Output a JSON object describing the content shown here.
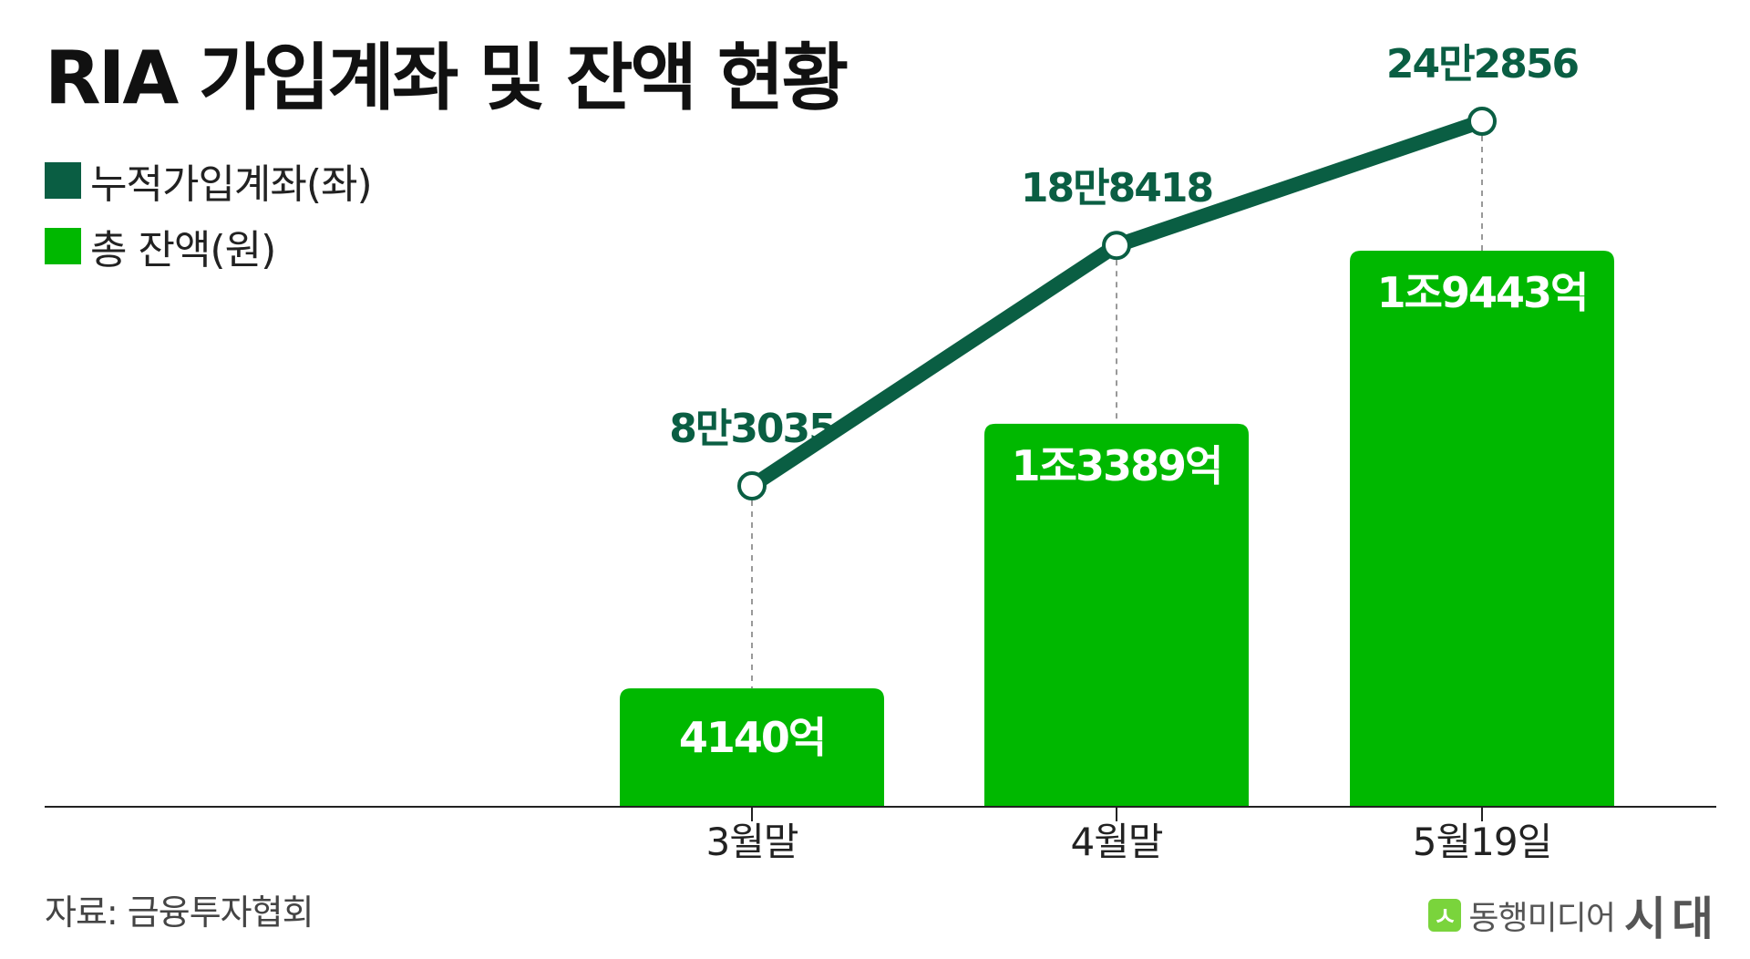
{
  "title": "RIA 가입계좌 및 잔액 현황",
  "source": "자료: 금융투자협회",
  "brand": {
    "mark": "ㅅ",
    "name": "동행미디어",
    "sub": "시대"
  },
  "colors": {
    "line": "#0a5e43",
    "bar": "#00b800",
    "axis": "#222222",
    "guide": "#999999"
  },
  "chart_data": {
    "type": "bar",
    "categories": [
      "3월말",
      "4월말",
      "5월19일"
    ],
    "legend": {
      "placement": "top-left"
    },
    "grid": false,
    "series": [
      {
        "name": "누적가입계좌(좌)",
        "chart": "line",
        "axis": "left",
        "color": "#0a5e43",
        "values": [
          83035,
          188418,
          242856
        ],
        "labels": [
          "8만3035",
          "18만8418",
          "24만2856"
        ]
      },
      {
        "name": "총 잔액(원)",
        "chart": "bar",
        "axis": "right",
        "color": "#00b800",
        "values": [
          4140,
          13389,
          19443
        ],
        "unit": "억",
        "labels": [
          "4140억",
          "1조3389억",
          "1조9443억"
        ]
      }
    ]
  }
}
